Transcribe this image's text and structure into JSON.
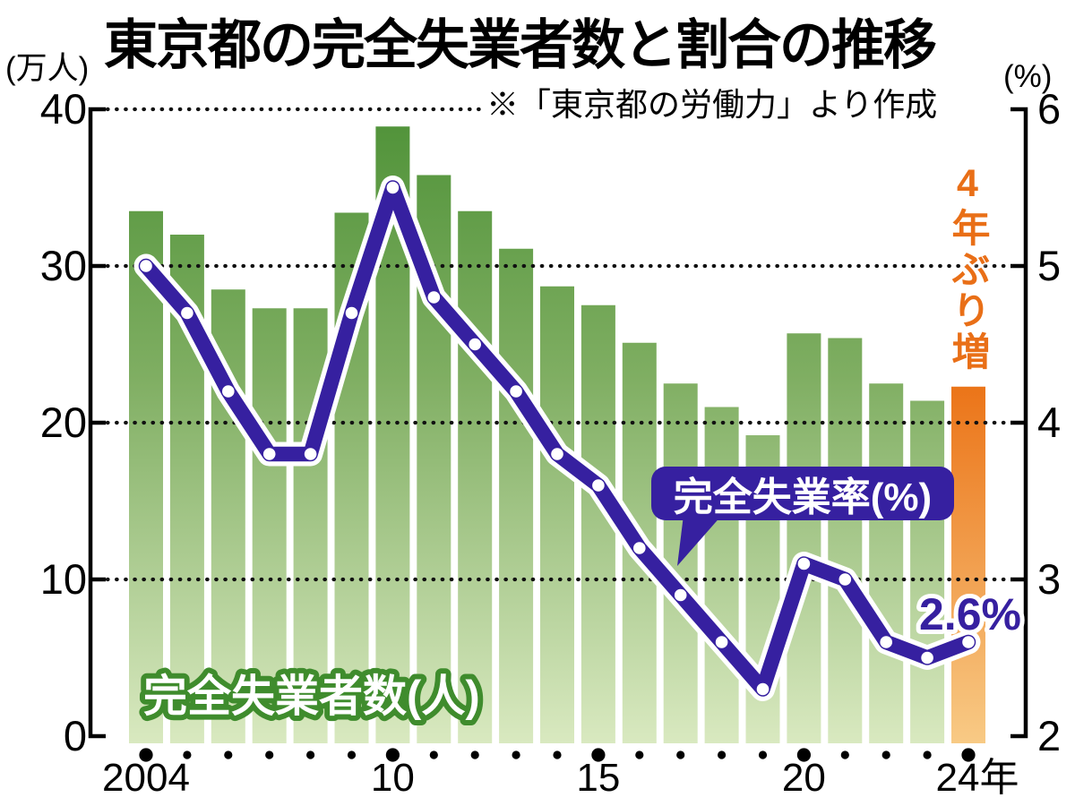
{
  "title": "東京都の完全失業者数と割合の推移",
  "source_note": "※「東京都の労働力」より作成",
  "left_axis": {
    "unit": "(万人)",
    "ticks": [
      40,
      30,
      20,
      10,
      0
    ],
    "range": [
      0,
      40
    ]
  },
  "right_axis": {
    "unit": "(%)",
    "ticks": [
      6,
      5,
      4,
      3,
      2
    ],
    "range": [
      2,
      6
    ]
  },
  "x_axis": {
    "labels": [
      {
        "text": "2004",
        "index": 0
      },
      {
        "text": "10",
        "index": 6
      },
      {
        "text": "15",
        "index": 11
      },
      {
        "text": "20",
        "index": 16
      },
      {
        "text": "24年",
        "index": 20
      }
    ],
    "major_dot_indices": [
      0,
      6,
      11,
      16,
      20
    ]
  },
  "annotations": {
    "bar_series_label": "完全失業者数(人)",
    "line_series_label": "完全失業率(%)",
    "highlight_label": "4年ぶり増",
    "last_rate_label": "2.6%"
  },
  "colors": {
    "bar_green_top": "#4f9238",
    "bar_green_mid": "#7fae62",
    "bar_green_bottom": "#d9e9c0",
    "bar_orange_top": "#eb7418",
    "bar_orange_bottom": "#f8ca85",
    "line_purple": "#3620a0",
    "highlight_text_orange": "#e96f17",
    "bar_label_outline_green": "#3f8c2d",
    "grid_black": "#111111"
  },
  "chart_data": {
    "type": "bar+line",
    "title": "東京都の完全失業者数と割合の推移",
    "categories": [
      2004,
      2005,
      2006,
      2007,
      2008,
      2009,
      2010,
      2011,
      2012,
      2013,
      2014,
      2015,
      2016,
      2017,
      2018,
      2019,
      2020,
      2021,
      2022,
      2023,
      2024
    ],
    "series": [
      {
        "name": "完全失業者数(万人)",
        "type": "bar",
        "axis": "left",
        "values": [
          33.5,
          32.0,
          28.5,
          27.3,
          27.3,
          33.4,
          38.9,
          35.8,
          33.5,
          31.1,
          28.7,
          27.5,
          25.1,
          22.5,
          21.0,
          19.2,
          25.7,
          25.4,
          22.5,
          21.4,
          22.3
        ]
      },
      {
        "name": "完全失業率(%)",
        "type": "line",
        "axis": "right",
        "values": [
          5.0,
          4.7,
          4.2,
          3.8,
          3.8,
          4.7,
          5.5,
          4.8,
          4.5,
          4.2,
          3.8,
          3.6,
          3.2,
          2.9,
          2.6,
          2.3,
          3.1,
          3.0,
          2.6,
          2.5,
          2.6
        ]
      }
    ],
    "left_ylim": [
      0,
      40
    ],
    "right_ylim": [
      2,
      6
    ],
    "grid": "dotted-horizontal",
    "highlight_index": 20,
    "highlight_note": "4年ぶり増",
    "last_value_label": "2.6%"
  }
}
